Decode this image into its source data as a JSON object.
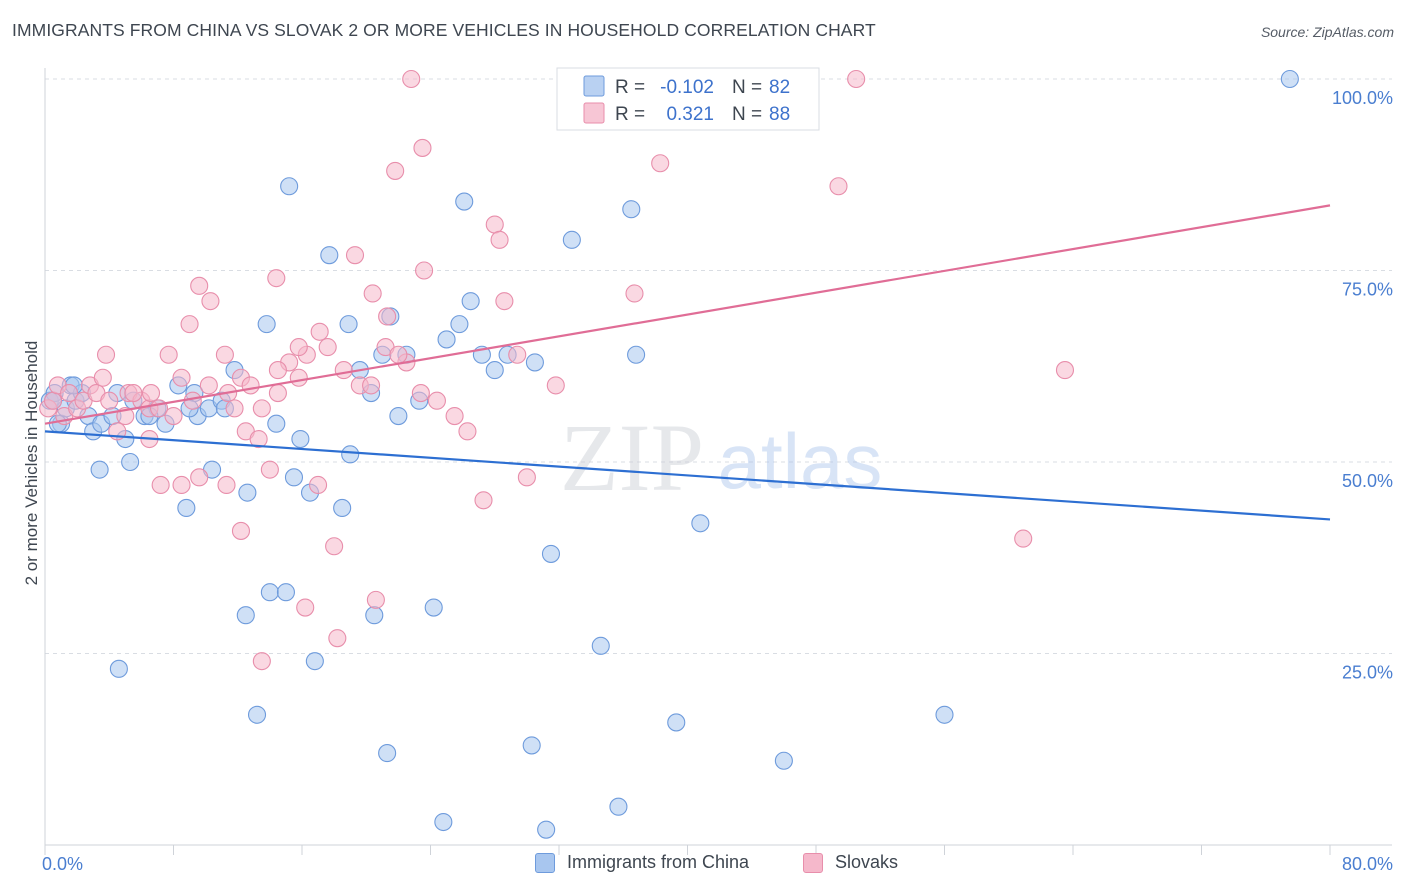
{
  "title": "IMMIGRANTS FROM CHINA VS SLOVAK 2 OR MORE VEHICLES IN HOUSEHOLD CORRELATION CHART",
  "source": "Source: ZipAtlas.com",
  "watermark": {
    "zip": "ZIP",
    "atlas": "atlas"
  },
  "colors": {
    "blue_fill": "#a8c6ef",
    "blue_stroke": "#6e9bdc",
    "blue_line": "#2d6fd2",
    "pink_fill": "#f5b8cb",
    "pink_stroke": "#e88eab",
    "pink_line": "#e06d96",
    "grid": "#d9dde3",
    "tick_text": "#4a7ed0",
    "text": "#3e4650"
  },
  "legend_box": {
    "rows": [
      {
        "r_label": "R =",
        "r_value": "-0.102",
        "n_label": "N =",
        "n_value": "82",
        "series": "china"
      },
      {
        "r_label": "R =",
        "r_value": "0.321",
        "n_label": "N =",
        "n_value": "88",
        "series": "slovaks"
      }
    ]
  },
  "chart_data": {
    "type": "scatter",
    "title": "IMMIGRANTS FROM CHINA VS SLOVAK 2 OR MORE VEHICLES IN HOUSEHOLD CORRELATION CHART",
    "xlabel": "",
    "ylabel": "2 or more Vehicles in Household",
    "xlim": [
      0,
      80
    ],
    "ylim": [
      0,
      100
    ],
    "x_tick_labels": [
      "0.0%",
      "80.0%"
    ],
    "y_ticks": [
      25,
      50,
      75,
      100
    ],
    "y_tick_labels": [
      "25.0%",
      "50.0%",
      "75.0%",
      "100.0%"
    ],
    "grid": true,
    "legend_position": "bottom-center",
    "series": [
      {
        "name": "Immigrants from China",
        "key": "china",
        "r": -0.102,
        "n": 82,
        "trend": {
          "x": [
            0,
            80
          ],
          "y": [
            54.0,
            42.5
          ]
        },
        "points": [
          [
            0.3,
            58
          ],
          [
            0.6,
            59
          ],
          [
            1.0,
            55
          ],
          [
            1.3,
            57
          ],
          [
            1.6,
            60
          ],
          [
            1.9,
            58
          ],
          [
            2.3,
            59
          ],
          [
            2.7,
            56
          ],
          [
            3.0,
            54
          ],
          [
            3.5,
            55
          ],
          [
            4.2,
            56
          ],
          [
            5.0,
            53
          ],
          [
            5.5,
            58
          ],
          [
            6.2,
            56
          ],
          [
            7.0,
            57
          ],
          [
            7.5,
            55
          ],
          [
            8.3,
            60
          ],
          [
            9.3,
            59
          ],
          [
            9.5,
            56
          ],
          [
            10.2,
            57
          ],
          [
            11.0,
            58
          ],
          [
            11.8,
            62
          ],
          [
            1.8,
            60
          ],
          [
            0.8,
            55
          ],
          [
            3.4,
            49
          ],
          [
            5.3,
            50
          ],
          [
            8.8,
            44
          ],
          [
            10.4,
            49
          ],
          [
            12.6,
            46
          ],
          [
            15.5,
            48
          ],
          [
            15.9,
            53
          ],
          [
            16.5,
            46
          ],
          [
            18.5,
            44
          ],
          [
            19.0,
            51
          ],
          [
            14.4,
            55
          ],
          [
            11.2,
            57
          ],
          [
            13.8,
            68
          ],
          [
            17.7,
            77
          ],
          [
            18.9,
            68
          ],
          [
            19.6,
            62
          ],
          [
            20.3,
            59
          ],
          [
            21.0,
            64
          ],
          [
            21.5,
            69
          ],
          [
            22.0,
            56
          ],
          [
            22.5,
            64
          ],
          [
            23.3,
            58
          ],
          [
            24.2,
            31
          ],
          [
            25.0,
            66
          ],
          [
            25.8,
            68
          ],
          [
            26.5,
            71
          ],
          [
            27.2,
            64
          ],
          [
            28.0,
            62
          ],
          [
            28.8,
            64
          ],
          [
            30.5,
            63
          ],
          [
            31.5,
            38
          ],
          [
            32.8,
            79
          ],
          [
            34.6,
            26
          ],
          [
            35.7,
            5
          ],
          [
            36.5,
            83
          ],
          [
            36.8,
            64
          ],
          [
            39.3,
            16
          ],
          [
            40.8,
            42
          ],
          [
            46.0,
            11
          ],
          [
            56.0,
            17
          ],
          [
            77.5,
            100
          ],
          [
            15.2,
            86
          ],
          [
            26.1,
            84
          ],
          [
            4.6,
            23
          ],
          [
            14.0,
            33
          ],
          [
            15.0,
            33
          ],
          [
            16.8,
            24
          ],
          [
            13.2,
            17
          ],
          [
            12.5,
            30
          ],
          [
            20.5,
            30
          ],
          [
            21.3,
            12
          ],
          [
            24.8,
            3
          ],
          [
            30.3,
            13
          ],
          [
            31.2,
            2
          ],
          [
            4.5,
            59
          ],
          [
            6.5,
            56
          ],
          [
            9.0,
            57
          ],
          [
            0.5,
            58
          ]
        ]
      },
      {
        "name": "Slovaks",
        "key": "slovaks",
        "r": 0.321,
        "n": 88,
        "trend": {
          "x": [
            0,
            80
          ],
          "y": [
            55.0,
            83.5
          ]
        },
        "points": [
          [
            0.2,
            57
          ],
          [
            0.5,
            58
          ],
          [
            0.8,
            60
          ],
          [
            1.2,
            56
          ],
          [
            1.5,
            59
          ],
          [
            2.0,
            57
          ],
          [
            2.4,
            58
          ],
          [
            2.8,
            60
          ],
          [
            3.2,
            59
          ],
          [
            3.6,
            61
          ],
          [
            4.0,
            58
          ],
          [
            4.5,
            54
          ],
          [
            5.2,
            59
          ],
          [
            6.0,
            58
          ],
          [
            6.5,
            57
          ],
          [
            7.1,
            57
          ],
          [
            8.0,
            56
          ],
          [
            8.5,
            61
          ],
          [
            9.2,
            58
          ],
          [
            10.2,
            60
          ],
          [
            11.4,
            59
          ],
          [
            12.2,
            61
          ],
          [
            12.8,
            60
          ],
          [
            13.5,
            57
          ],
          [
            3.8,
            64
          ],
          [
            5.0,
            56
          ],
          [
            6.6,
            59
          ],
          [
            7.7,
            64
          ],
          [
            9.6,
            48
          ],
          [
            11.3,
            47
          ],
          [
            11.8,
            57
          ],
          [
            12.5,
            54
          ],
          [
            13.3,
            53
          ],
          [
            14.0,
            49
          ],
          [
            14.5,
            59
          ],
          [
            15.2,
            63
          ],
          [
            15.8,
            61
          ],
          [
            16.3,
            64
          ],
          [
            17.1,
            67
          ],
          [
            17.6,
            65
          ],
          [
            18.6,
            62
          ],
          [
            19.6,
            60
          ],
          [
            20.4,
            72
          ],
          [
            21.3,
            69
          ],
          [
            22.5,
            63
          ],
          [
            23.4,
            59
          ],
          [
            24.4,
            58
          ],
          [
            25.5,
            56
          ],
          [
            26.3,
            54
          ],
          [
            27.3,
            45
          ],
          [
            28.0,
            81
          ],
          [
            28.3,
            79
          ],
          [
            28.6,
            71
          ],
          [
            29.4,
            64
          ],
          [
            30.0,
            48
          ],
          [
            31.8,
            60
          ],
          [
            36.7,
            72
          ],
          [
            38.3,
            89
          ],
          [
            49.4,
            86
          ],
          [
            50.5,
            100
          ],
          [
            60.9,
            40
          ],
          [
            63.5,
            62
          ],
          [
            22.8,
            100
          ],
          [
            23.5,
            91
          ],
          [
            21.8,
            88
          ],
          [
            19.3,
            77
          ],
          [
            14.4,
            74
          ],
          [
            23.6,
            75
          ],
          [
            9.6,
            73
          ],
          [
            10.3,
            71
          ],
          [
            9.0,
            68
          ],
          [
            11.2,
            64
          ],
          [
            8.5,
            47
          ],
          [
            7.2,
            47
          ],
          [
            12.2,
            41
          ],
          [
            18.0,
            39
          ],
          [
            20.6,
            32
          ],
          [
            16.2,
            31
          ],
          [
            18.2,
            27
          ],
          [
            13.5,
            24
          ],
          [
            14.5,
            62
          ],
          [
            6.5,
            53
          ],
          [
            21.2,
            65
          ],
          [
            22.0,
            64
          ],
          [
            17.0,
            47
          ],
          [
            15.8,
            65
          ],
          [
            5.5,
            59
          ],
          [
            20.3,
            60
          ]
        ]
      }
    ]
  },
  "bottom_legend": {
    "items": [
      {
        "label": "Immigrants from China",
        "series": "china"
      },
      {
        "label": "Slovaks",
        "series": "slovaks"
      }
    ]
  }
}
